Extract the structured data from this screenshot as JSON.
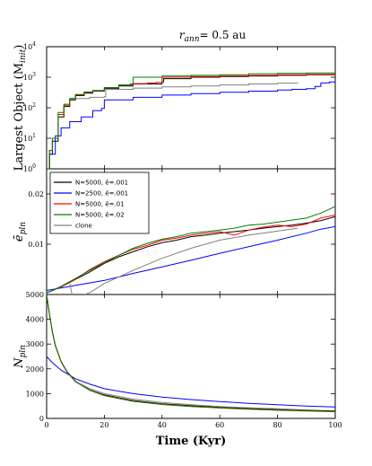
{
  "chart_data": {
    "type": "line",
    "title_prefix": "r",
    "title_sub": "ann",
    "title_value": "= 0.5 au",
    "xlabel": "Time (Kyr)",
    "xlim": [
      0,
      100
    ],
    "xticks": [
      "0",
      "20",
      "40",
      "60",
      "80",
      "100"
    ],
    "legend": [
      {
        "label": "N=5000, ē=.001",
        "color": "#000000"
      },
      {
        "label": "N=2500, ē=.001",
        "color": "#0000ff"
      },
      {
        "label": "N=5000, ē=.01",
        "color": "#ff0000"
      },
      {
        "label": "N=5000, ē=.02",
        "color": "#008000"
      },
      {
        "label": "clone",
        "color": "#808080"
      }
    ],
    "panels": [
      {
        "id": "largest",
        "ylabel": "Largest Object (M",
        "ylabel_sub": "init",
        "ylabel_tail": ")",
        "yscale": "log",
        "ylim_exp": [
          0,
          4
        ],
        "yticks": [
          {
            "base": "10",
            "exp": "0"
          },
          {
            "base": "10",
            "exp": "1"
          },
          {
            "base": "10",
            "exp": "2"
          },
          {
            "base": "10",
            "exp": "3"
          },
          {
            "base": "10",
            "exp": "4"
          }
        ],
        "series": [
          {
            "color": "#000000",
            "x": [
              0,
              1,
              2,
              4,
              6,
              8,
              10,
              13,
              16,
              20,
              25,
              30,
              40,
              40.5,
              50,
              60,
              70,
              80,
              90,
              100
            ],
            "y": [
              1,
              3,
              8,
              50,
              110,
              180,
              250,
              300,
              350,
              420,
              520,
              600,
              700,
              900,
              1000,
              1050,
              1100,
              1150,
              1200,
              1250
            ]
          },
          {
            "color": "#0000ff",
            "x": [
              0,
              1,
              3,
              5,
              8,
              12,
              16,
              19,
              20,
              30,
              40,
              50,
              60,
              70,
              80,
              85,
              90,
              93,
              95,
              98,
              100
            ],
            "y": [
              1,
              3,
              12,
              22,
              35,
              50,
              80,
              95,
              180,
              220,
              260,
              290,
              320,
              350,
              380,
              400,
              420,
              500,
              650,
              700,
              750
            ]
          },
          {
            "color": "#ff0000",
            "x": [
              0,
              1,
              2,
              4,
              6,
              8,
              10,
              13,
              16,
              20,
              25,
              30,
              35,
              38,
              40,
              50,
              60,
              70,
              80,
              90,
              100
            ],
            "y": [
              1,
              4,
              10,
              60,
              120,
              200,
              260,
              320,
              360,
              450,
              560,
              620,
              650,
              680,
              1000,
              1050,
              1100,
              1150,
              1200,
              1250,
              1300
            ]
          },
          {
            "color": "#008000",
            "x": [
              0,
              1,
              2,
              4,
              6,
              8,
              10,
              13,
              16,
              20,
              25,
              29,
              30,
              40,
              50,
              60,
              70,
              80,
              90,
              100
            ],
            "y": [
              1,
              4,
              10,
              70,
              130,
              200,
              270,
              330,
              370,
              460,
              560,
              600,
              1000,
              1100,
              1150,
              1200,
              1300,
              1350,
              1380,
              1400
            ]
          },
          {
            "color": "#808080",
            "x": [
              10,
              15,
              20,
              20.5,
              30,
              40,
              50,
              60,
              70,
              80,
              87
            ],
            "y": [
              200,
              220,
              230,
              400,
              440,
              480,
              520,
              560,
              600,
              640,
              660
            ]
          }
        ]
      },
      {
        "id": "ecc",
        "ylabel": "ē",
        "ylabel_sub": "pln",
        "ylabel_tail": "",
        "yscale": "linear",
        "ylim": [
          0.0,
          0.025
        ],
        "yticks": [
          {
            "value": 0.01,
            "label": "0.01"
          },
          {
            "value": 0.02,
            "label": "0.02"
          }
        ],
        "series": [
          {
            "color": "#000000",
            "x": [
              0,
              5,
              10,
              15,
              20,
              25,
              30,
              35,
              40,
              45,
              50,
              55,
              60,
              65,
              70,
              75,
              80,
              85,
              90,
              95,
              100
            ],
            "y": [
              0.0003,
              0.0015,
              0.003,
              0.0045,
              0.0062,
              0.0075,
              0.0085,
              0.0095,
              0.0103,
              0.0108,
              0.0115,
              0.0118,
              0.0122,
              0.0125,
              0.0128,
              0.0132,
              0.0135,
              0.0138,
              0.0142,
              0.0147,
              0.0155
            ]
          },
          {
            "color": "#0000ff",
            "x": [
              0,
              10,
              20,
              30,
              40,
              50,
              60,
              70,
              80,
              90,
              95,
              100
            ],
            "y": [
              0.0008,
              0.0018,
              0.0028,
              0.0042,
              0.0055,
              0.0068,
              0.0082,
              0.0095,
              0.0108,
              0.0122,
              0.013,
              0.0135
            ]
          },
          {
            "color": "#ff0000",
            "x": [
              0,
              5,
              10,
              15,
              20,
              25,
              30,
              35,
              40,
              45,
              50,
              55,
              60,
              65,
              70,
              75,
              80,
              85,
              90,
              95,
              100
            ],
            "y": [
              0.0003,
              0.0015,
              0.003,
              0.005,
              0.0065,
              0.0078,
              0.009,
              0.0098,
              0.0108,
              0.0112,
              0.0118,
              0.0122,
              0.0125,
              0.0118,
              0.0128,
              0.0134,
              0.0138,
              0.0135,
              0.014,
              0.0152,
              0.0158
            ]
          },
          {
            "color": "#008000",
            "x": [
              0,
              5,
              10,
              15,
              20,
              25,
              30,
              35,
              40,
              45,
              50,
              55,
              60,
              65,
              70,
              75,
              80,
              85,
              90,
              95,
              100
            ],
            "y": [
              0.0003,
              0.0016,
              0.0032,
              0.0048,
              0.0063,
              0.0078,
              0.0092,
              0.0102,
              0.011,
              0.0115,
              0.0122,
              0.0125,
              0.0128,
              0.0132,
              0.0138,
              0.014,
              0.0144,
              0.0148,
              0.0152,
              0.0162,
              0.0175
            ]
          },
          {
            "color": "#808080",
            "x": [
              8,
              9,
              10,
              15,
              20,
              30,
              40,
              50,
              60,
              70,
              80,
              87
            ],
            "y": [
              0.0022,
              -0.0005,
              -0.0008,
              0.0004,
              0.0022,
              0.0048,
              0.0072,
              0.0092,
              0.0108,
              0.0118,
              0.0126,
              0.0132
            ]
          }
        ]
      },
      {
        "id": "npln",
        "ylabel": "N",
        "ylabel_sub": "pln",
        "ylabel_tail": "",
        "yscale": "linear",
        "ylim": [
          0,
          5000
        ],
        "yticks": [
          {
            "value": 0,
            "label": "0"
          },
          {
            "value": 1000,
            "label": "1000"
          },
          {
            "value": 2000,
            "label": "2000"
          },
          {
            "value": 3000,
            "label": "3000"
          },
          {
            "value": 4000,
            "label": "4000"
          },
          {
            "value": 5000,
            "label": "5000"
          }
        ],
        "series": [
          {
            "color": "#000000",
            "x": [
              0,
              1,
              2,
              3,
              5,
              7,
              10,
              15,
              20,
              30,
              40,
              50,
              60,
              70,
              80,
              90,
              100
            ],
            "y": [
              5000,
              4200,
              3500,
              2950,
              2300,
              1900,
              1500,
              1150,
              950,
              720,
              590,
              510,
              450,
              400,
              360,
              330,
              300
            ]
          },
          {
            "color": "#0000ff",
            "x": [
              0,
              2,
              5,
              10,
              15,
              20,
              30,
              40,
              50,
              60,
              70,
              80,
              90,
              100
            ],
            "y": [
              2500,
              2250,
              1950,
              1600,
              1380,
              1200,
              1000,
              860,
              760,
              680,
              610,
              550,
              500,
              460
            ]
          },
          {
            "color": "#ff0000",
            "x": [
              0,
              1,
              2,
              3,
              5,
              7,
              10,
              15,
              20,
              30,
              40,
              50,
              60,
              70,
              80,
              90,
              100
            ],
            "y": [
              5000,
              4200,
              3500,
              2950,
              2300,
              1900,
              1500,
              1150,
              930,
              700,
              570,
              490,
              430,
              380,
              340,
              310,
              280
            ]
          },
          {
            "color": "#008000",
            "x": [
              0,
              1,
              2,
              3,
              5,
              7,
              10,
              15,
              20,
              30,
              40,
              50,
              60,
              70,
              80,
              90,
              100
            ],
            "y": [
              5000,
              4180,
              3480,
              2930,
              2280,
              1880,
              1480,
              1130,
              920,
              690,
              560,
              480,
              420,
              370,
              330,
              300,
              270
            ]
          },
          {
            "color": "#808080",
            "x": [
              10,
              15,
              20,
              30,
              40,
              50,
              60,
              70,
              80,
              87
            ],
            "y": [
              1500,
              1200,
              1000,
              780,
              640,
              550,
              480,
              430,
              390,
              360
            ]
          }
        ]
      }
    ]
  }
}
